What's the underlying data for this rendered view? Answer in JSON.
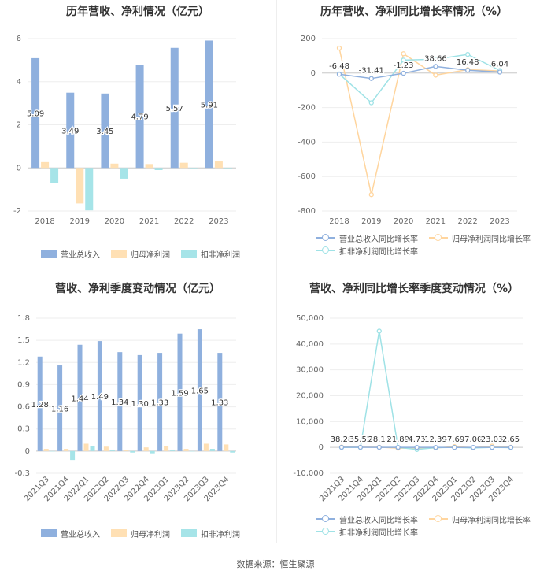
{
  "colors": {
    "revenue": "#8fb0de",
    "net": "#ffe0b4",
    "deducted": "#a6e4e8",
    "line_rev": "#8fb0de",
    "line_net": "#ffd59e",
    "line_ded": "#9fe2e6"
  },
  "source": "数据来源：恒生聚源",
  "chart_data": [
    {
      "type": "bar",
      "title": "历年营收、净利情况（亿元）",
      "categories": [
        "2018",
        "2019",
        "2020",
        "2021",
        "2022",
        "2023"
      ],
      "ylim": [
        -2,
        6
      ],
      "yticks": [
        -2,
        0,
        2,
        4,
        6
      ],
      "series": [
        {
          "name": "营业总收入",
          "values": [
            5.09,
            3.49,
            3.45,
            4.79,
            5.57,
            5.91
          ],
          "labels": [
            "5.09",
            "3.49",
            "3.45",
            "4.79",
            "5.57",
            "5.91"
          ]
        },
        {
          "name": "归母净利润",
          "values": [
            0.27,
            -1.65,
            0.2,
            0.18,
            0.24,
            0.3
          ]
        },
        {
          "name": "扣非净利润",
          "values": [
            -0.72,
            -1.97,
            -0.5,
            -0.1,
            -0.02,
            -0.02
          ]
        }
      ]
    },
    {
      "type": "line",
      "title": "历年营收、净利同比增长率情况（%）",
      "categories": [
        "2018",
        "2019",
        "2020",
        "2021",
        "2022",
        "2023"
      ],
      "ylim": [
        -800,
        200
      ],
      "yticks": [
        -800,
        -600,
        -400,
        -200,
        0,
        200
      ],
      "series": [
        {
          "name": "营业总收入同比增长率",
          "values": [
            -6.48,
            -31.41,
            -1.23,
            38.66,
            16.48,
            6.04
          ],
          "labels": [
            "-6.48",
            "-31.41",
            "-1.23",
            "38.66",
            "16.48",
            "6.04"
          ]
        },
        {
          "name": "归母净利润同比增长率",
          "values": [
            145,
            -705,
            112,
            -12,
            20,
            12
          ]
        },
        {
          "name": "扣非净利润同比增长率",
          "values": [
            -5,
            -172,
            75,
            80,
            108,
            15
          ]
        }
      ]
    },
    {
      "type": "bar",
      "title": "营收、净利季度变动情况（亿元）",
      "categories": [
        "2021Q3",
        "2021Q4",
        "2022Q1",
        "2022Q2",
        "2022Q3",
        "2022Q4",
        "2023Q1",
        "2023Q2",
        "2023Q3",
        "2023Q4"
      ],
      "ylim": [
        -0.3,
        1.8
      ],
      "yticks": [
        "-0.3",
        "0",
        "0.3",
        "0.6",
        "0.9",
        "1.2",
        "1.5",
        "1.8"
      ],
      "series": [
        {
          "name": "营业总收入",
          "values": [
            1.28,
            1.16,
            1.44,
            1.49,
            1.34,
            1.3,
            1.33,
            1.59,
            1.65,
            1.33
          ],
          "labels": [
            "1.28",
            "1.16",
            "1.44",
            "1.49",
            "1.34",
            "1.30",
            "1.33",
            "1.59",
            "1.65",
            "1.33"
          ]
        },
        {
          "name": "归母净利润",
          "values": [
            0.03,
            0.03,
            0.1,
            0.06,
            0.01,
            0.05,
            0.07,
            0.03,
            0.1,
            0.09
          ]
        },
        {
          "name": "扣非净利润",
          "values": [
            0.0,
            -0.12,
            0.07,
            0.02,
            -0.02,
            -0.03,
            0.02,
            0.0,
            0.03,
            -0.02
          ]
        }
      ]
    },
    {
      "type": "line",
      "title": "营收、净利同比增长率季度变动情况（%）",
      "categories": [
        "2021Q3",
        "2021Q4",
        "2022Q1",
        "2022Q2",
        "2022Q3",
        "2022Q4",
        "2023Q1",
        "2023Q2",
        "2023Q3",
        "2023Q4"
      ],
      "ylim": [
        -10000,
        50000
      ],
      "yticks": [
        "-10,000",
        "0",
        "10,000",
        "20,000",
        "30,000",
        "40,000",
        "50,000"
      ],
      "series": [
        {
          "name": "营业总收入同比增长率",
          "values": [
            38.28,
            35.52,
            28.17,
            21.89,
            4.73,
            12.39,
            -7.69,
            7.0,
            23.03,
            2.65
          ],
          "labels": [
            "38.28",
            "35.52",
            "28.17",
            "21.89",
            "4.73",
            "12.39",
            "-7.69",
            "7.00",
            "23.03",
            "2.65"
          ]
        },
        {
          "name": "归母净利润同比增长率",
          "values": [
            150,
            80,
            100,
            -300,
            -400,
            -200,
            300,
            -100,
            500,
            100
          ]
        },
        {
          "name": "扣非净利润同比增长率",
          "values": [
            0,
            0,
            45000,
            0,
            -800,
            -100,
            0,
            -200,
            0,
            -100
          ]
        }
      ]
    }
  ]
}
